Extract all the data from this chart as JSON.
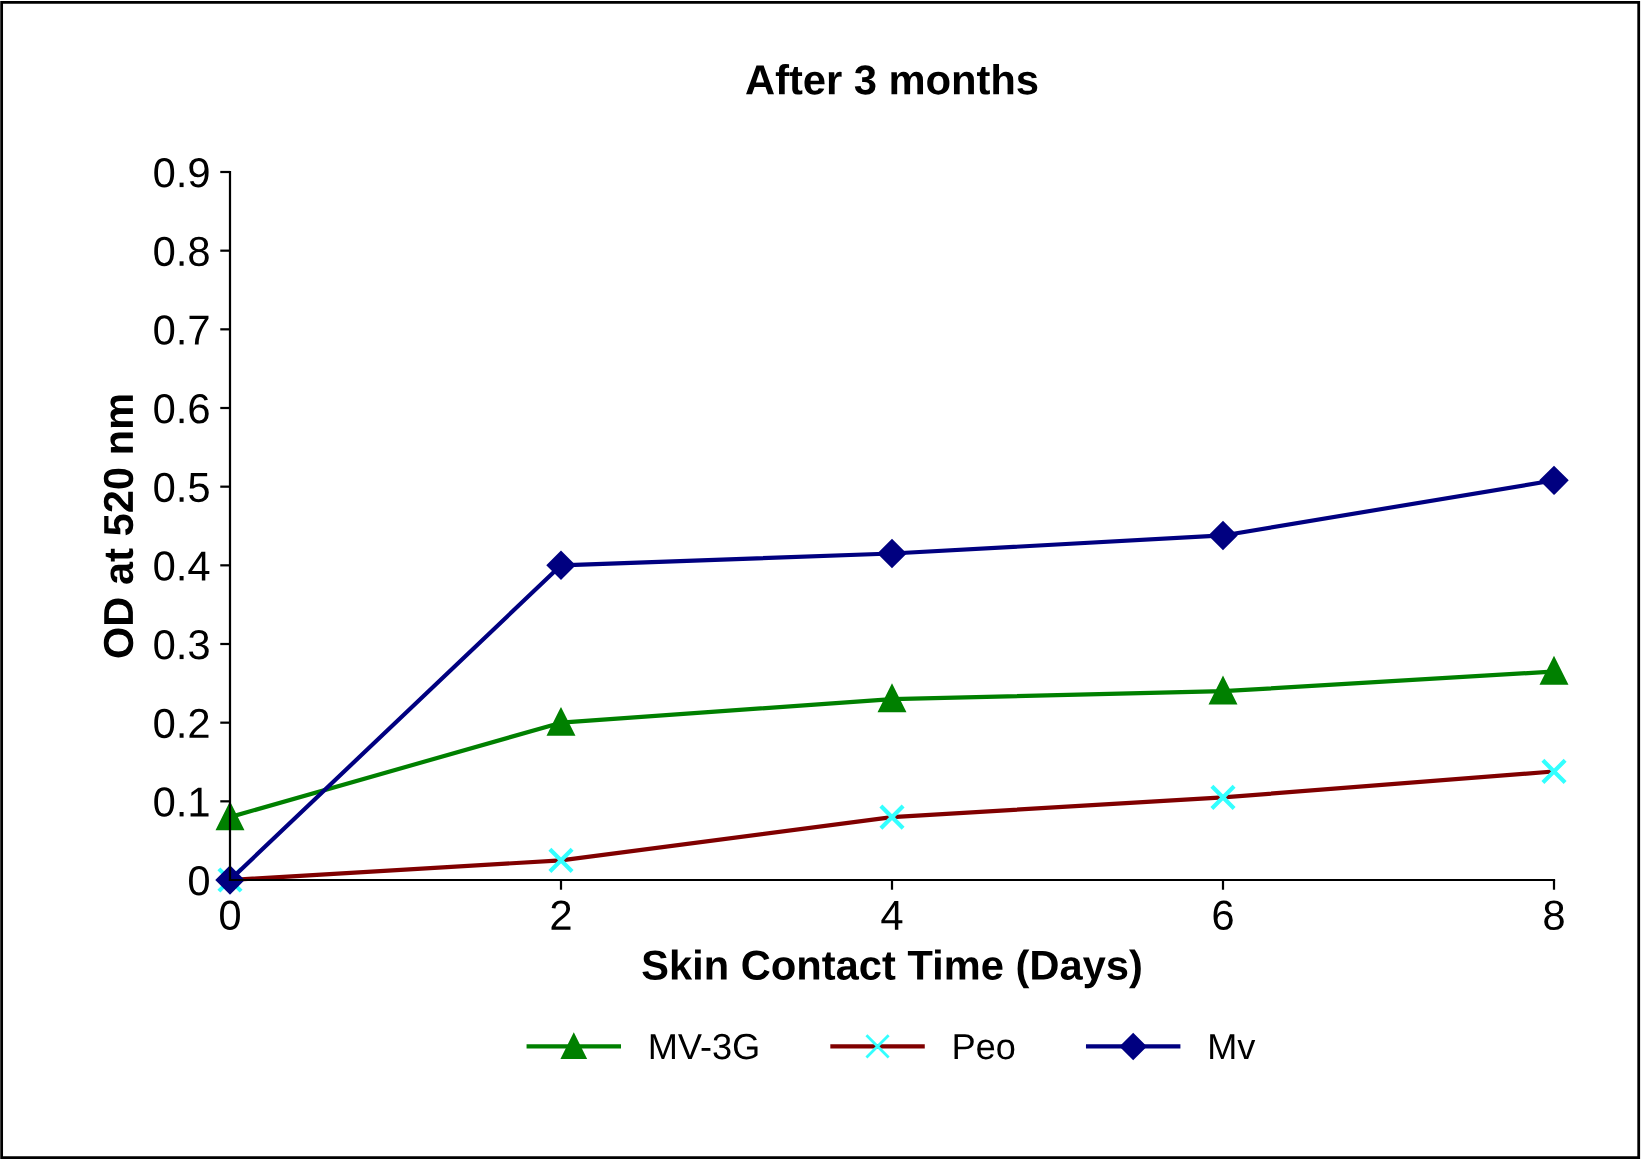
{
  "chart_data": {
    "type": "line",
    "title": "After 3 months",
    "xlabel": "Skin Contact Time (Days)",
    "ylabel": "OD at 520 nm",
    "x": [
      0,
      2,
      4,
      6,
      8
    ],
    "series": [
      {
        "name": "MV-3G",
        "color": "#008000",
        "marker": "triangle",
        "values": [
          0.08,
          0.2,
          0.23,
          0.24,
          0.265
        ]
      },
      {
        "name": "Peo",
        "color": "#800000",
        "colors": [
          "#33ffff",
          "#33ffff",
          "#33ffff",
          "#33ffff",
          "#33ffff"
        ],
        "marker": "cross",
        "values": [
          0,
          0.025,
          0.08,
          0.105,
          0.138
        ]
      },
      {
        "name": "Mv",
        "color": "#000080",
        "marker": "diamond",
        "values": [
          0,
          0.4,
          0.415,
          0.438,
          0.508
        ]
      }
    ],
    "xlim": [
      0,
      8
    ],
    "xticks": [
      0,
      2,
      4,
      6,
      8
    ],
    "ylim": [
      0,
      0.9
    ],
    "yticks": [
      0,
      0.1,
      0.2,
      0.3,
      0.4,
      0.5,
      0.6,
      0.7,
      0.8,
      0.9
    ],
    "grid": false,
    "legend": "bottom",
    "line_style": "solid"
  }
}
